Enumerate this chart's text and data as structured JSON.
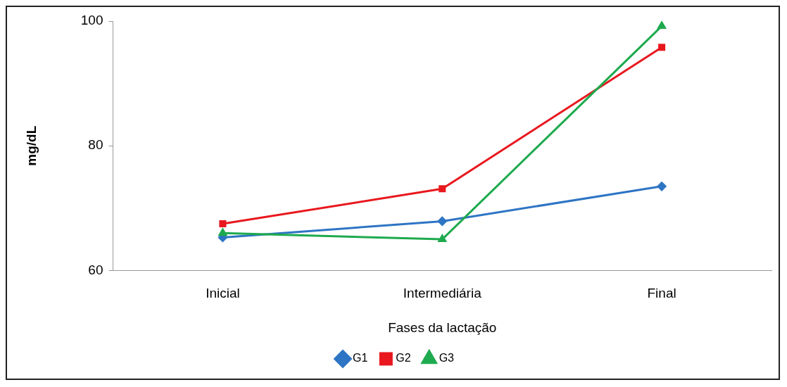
{
  "chart_data": {
    "type": "line",
    "xlabel": "Fases da lactação",
    "ylabel": "mg/dL",
    "categories": [
      "Inicial",
      "Intermediária",
      "Final"
    ],
    "series": [
      {
        "name": "G1",
        "color": "#2e75c4",
        "marker": "diamond",
        "values": [
          65.3,
          67.9,
          73.5
        ]
      },
      {
        "name": "G2",
        "color": "#e8181e",
        "marker": "square",
        "values": [
          67.5,
          73.1,
          95.8
        ]
      },
      {
        "name": "G3",
        "color": "#1eaa4e",
        "marker": "triangle",
        "values": [
          66.0,
          65.0,
          99.2
        ]
      }
    ],
    "ylim": [
      60,
      100
    ],
    "yticks": [
      60,
      80,
      100
    ],
    "grid": false,
    "legend": "bottom"
  }
}
